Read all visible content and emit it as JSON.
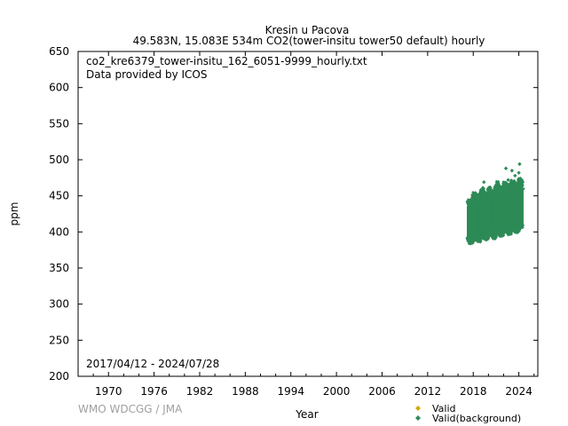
{
  "chart_data": {
    "type": "scatter",
    "title": "Kresin u Pacova",
    "subtitle": "49.583N, 15.083E 534m    CO2(tower-insitu tower50 default) hourly",
    "xlabel": "Year",
    "ylabel": "ppm",
    "xlim": [
      1966.0,
      2026.5
    ],
    "ylim": [
      200,
      650
    ],
    "xticks": [
      1970,
      1976,
      1982,
      1988,
      1994,
      2000,
      2006,
      2012,
      2018,
      2024
    ],
    "yticks": [
      200,
      250,
      300,
      350,
      400,
      450,
      500,
      550,
      600,
      650
    ],
    "annotations": [
      "co2_kre6379_tower-insitu_162_6051-9999_hourly.txt",
      "Data provided by ICOS"
    ],
    "date_range": "2017/04/12 - 2024/07/28",
    "legend_position": "bottom-right",
    "series": [
      {
        "name": "Valid",
        "color": "#d4aa00",
        "marker": "diamond",
        "points": []
      },
      {
        "name": "Valid(background)",
        "color": "#2e8b57",
        "marker": "diamond",
        "band": [
          {
            "x": 2017.3,
            "low": 392,
            "high": 432
          },
          {
            "x": 2017.6,
            "low": 390,
            "high": 438
          },
          {
            "x": 2018.0,
            "low": 392,
            "high": 445
          },
          {
            "x": 2018.4,
            "low": 395,
            "high": 440
          },
          {
            "x": 2018.8,
            "low": 393,
            "high": 447
          },
          {
            "x": 2019.2,
            "low": 397,
            "high": 450
          },
          {
            "x": 2019.6,
            "low": 395,
            "high": 443
          },
          {
            "x": 2020.0,
            "low": 398,
            "high": 452
          },
          {
            "x": 2020.4,
            "low": 400,
            "high": 447
          },
          {
            "x": 2020.8,
            "low": 397,
            "high": 455
          },
          {
            "x": 2021.2,
            "low": 402,
            "high": 458
          },
          {
            "x": 2021.6,
            "low": 400,
            "high": 450
          },
          {
            "x": 2022.0,
            "low": 403,
            "high": 460
          },
          {
            "x": 2022.4,
            "low": 405,
            "high": 455
          },
          {
            "x": 2022.8,
            "low": 403,
            "high": 462
          },
          {
            "x": 2023.2,
            "low": 407,
            "high": 460
          },
          {
            "x": 2023.6,
            "low": 405,
            "high": 455
          },
          {
            "x": 2024.0,
            "low": 408,
            "high": 465
          },
          {
            "x": 2024.5,
            "low": 410,
            "high": 458
          }
        ],
        "outliers": [
          {
            "x": 2019.4,
            "y": 469
          },
          {
            "x": 2020.2,
            "y": 462
          },
          {
            "x": 2022.3,
            "y": 488
          },
          {
            "x": 2023.1,
            "y": 485
          },
          {
            "x": 2023.5,
            "y": 478
          },
          {
            "x": 2024.1,
            "y": 494
          },
          {
            "x": 2024.0,
            "y": 482
          },
          {
            "x": 2022.6,
            "y": 472
          },
          {
            "x": 2021.3,
            "y": 466
          },
          {
            "x": 2024.4,
            "y": 470
          }
        ]
      }
    ]
  },
  "credit": "WMO WDCGG / JMA"
}
